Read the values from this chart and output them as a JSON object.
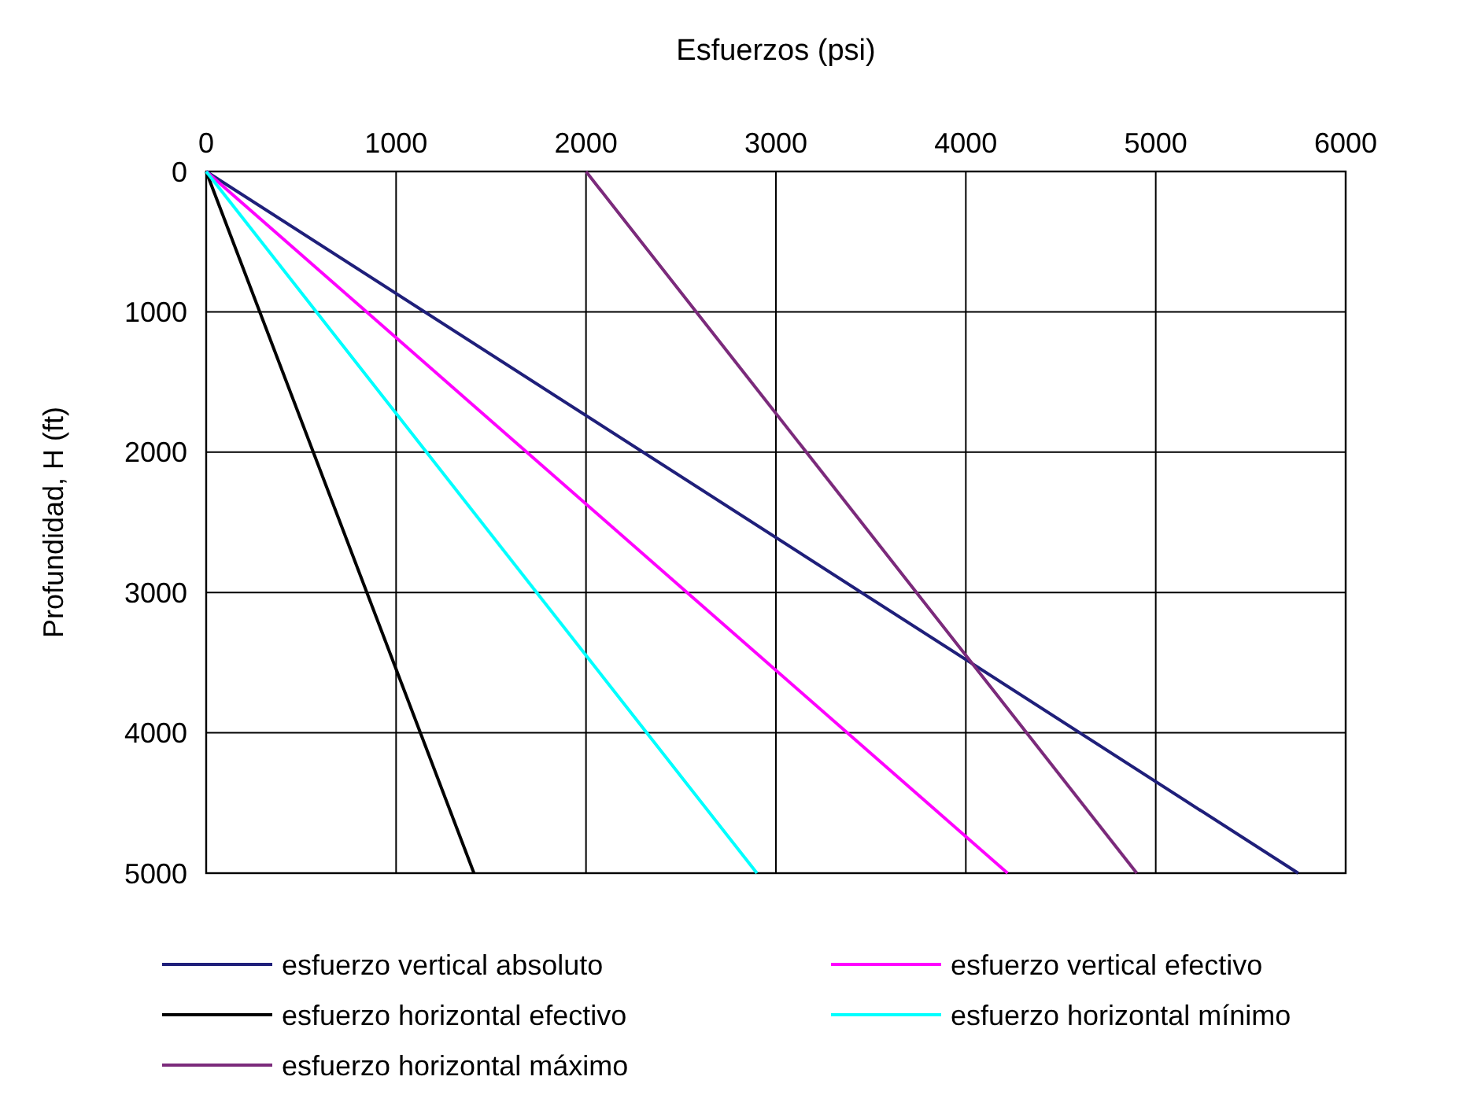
{
  "chart_data": {
    "type": "line",
    "xlabel": "Esfuerzos (psi)",
    "ylabel": "Profundidad, H (ft)",
    "xlim": [
      0,
      6000
    ],
    "xticks": [
      0,
      1000,
      2000,
      3000,
      4000,
      5000,
      6000
    ],
    "ylim": [
      5000,
      0
    ],
    "yticks": [
      0,
      1000,
      2000,
      3000,
      4000,
      5000
    ],
    "grid": true,
    "legend": "bottom",
    "marker": "none",
    "line_style": "solid",
    "series": [
      {
        "name": "esfuerzo vertical absoluto",
        "color": "#1f1f7a",
        "x": [
          0,
          5750
        ],
        "values": [
          0,
          5000
        ]
      },
      {
        "name": "esfuerzo vertical efectivo",
        "color": "#ff00ff",
        "x": [
          0,
          4220
        ],
        "values": [
          0,
          5000
        ]
      },
      {
        "name": "esfuerzo horizontal efectivo",
        "color": "#000000",
        "x": [
          0,
          1410
        ],
        "values": [
          0,
          5000
        ]
      },
      {
        "name": "esfuerzo horizontal mínimo",
        "color": "#00ffff",
        "x": [
          0,
          2900
        ],
        "values": [
          0,
          5000
        ]
      },
      {
        "name": "esfuerzo horizontal máximo",
        "color": "#7b2a7b",
        "x": [
          2000,
          4900
        ],
        "values": [
          0,
          5000
        ]
      }
    ]
  }
}
